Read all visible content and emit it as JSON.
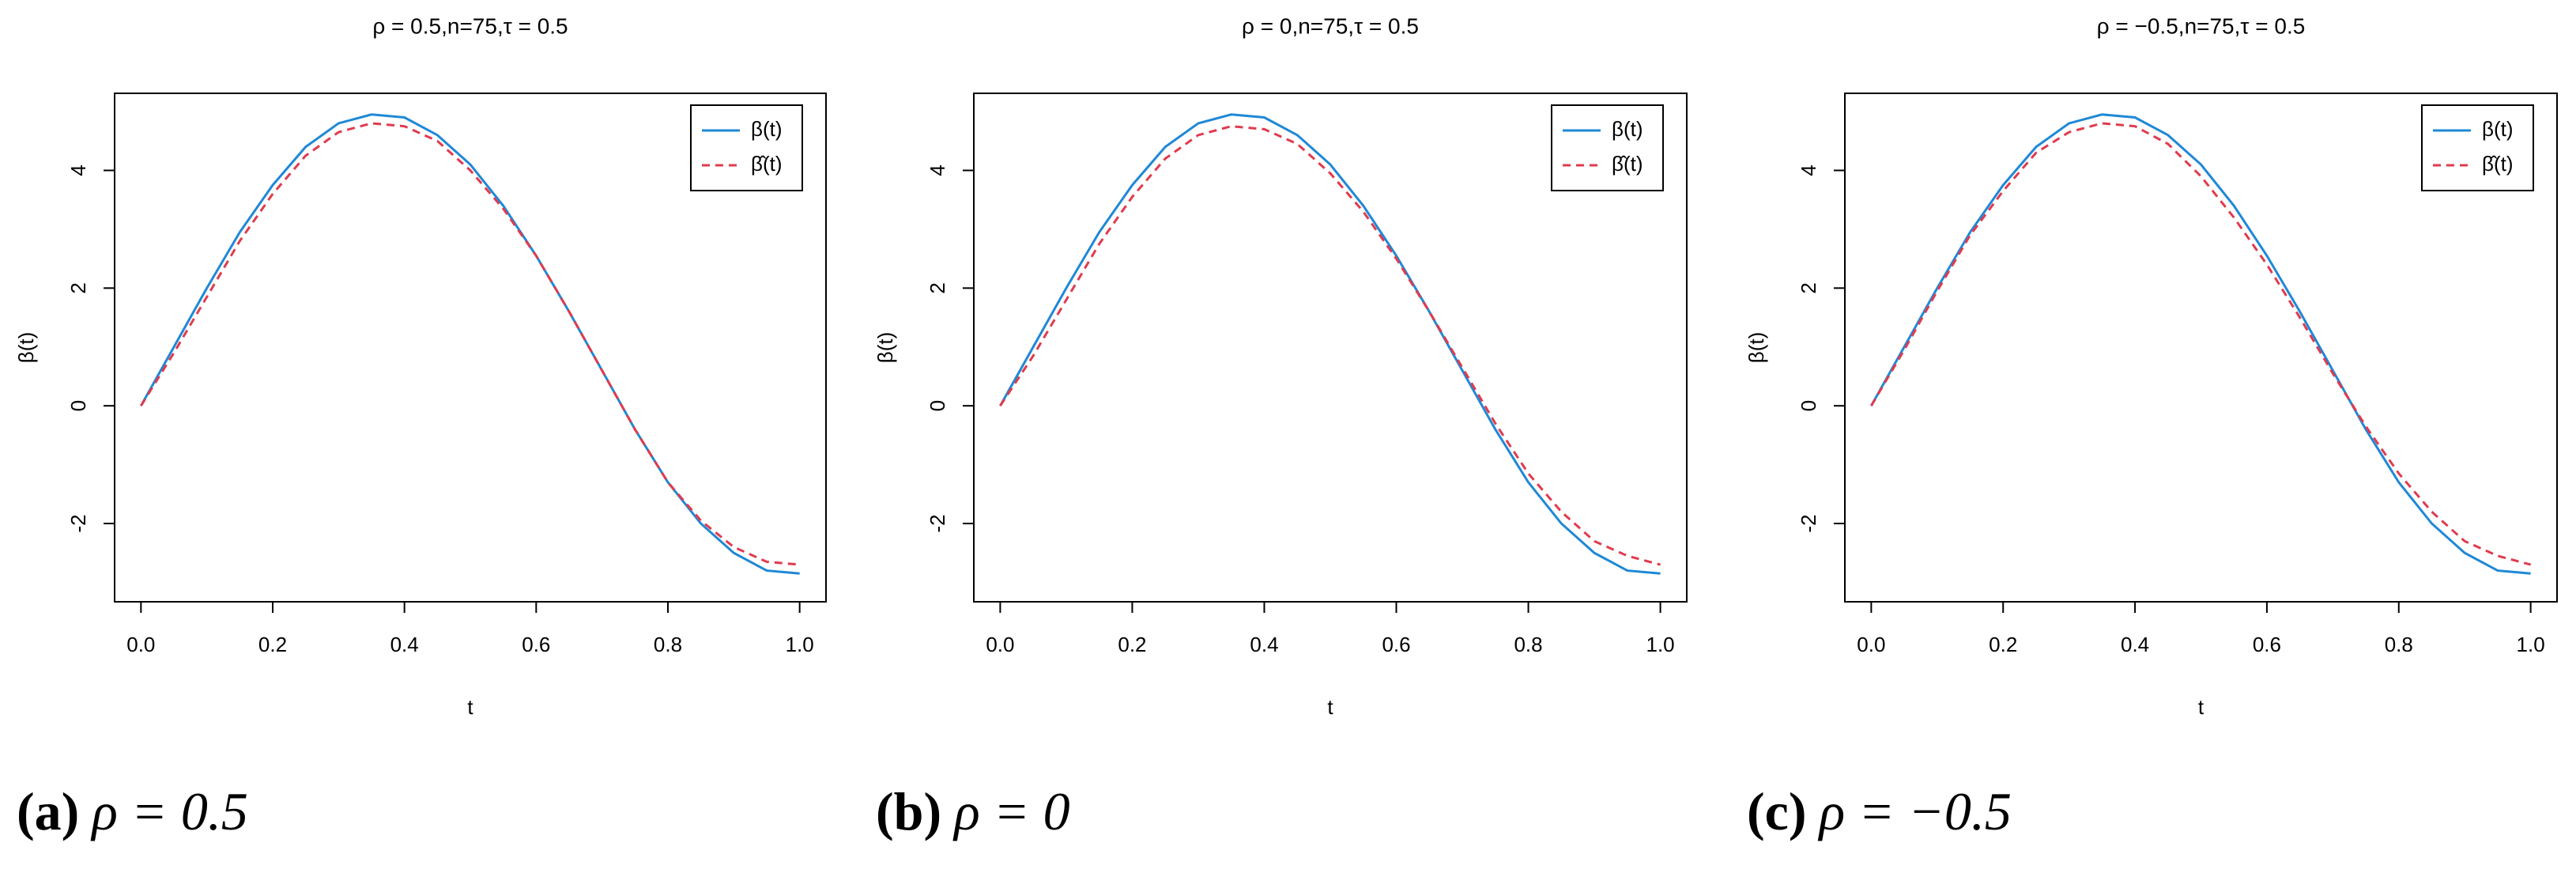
{
  "chart_data": [
    {
      "type": "line",
      "title": "ρ = 0.5,n=75,τ = 0.5",
      "xlabel": "t",
      "ylabel": "β(t)",
      "caption_label": "(a)",
      "caption": "ρ = 0.5",
      "x": [
        0,
        0.05,
        0.1,
        0.15,
        0.2,
        0.25,
        0.3,
        0.35,
        0.4,
        0.45,
        0.5,
        0.55,
        0.6,
        0.65,
        0.7,
        0.75,
        0.8,
        0.85,
        0.9,
        0.95,
        1.0
      ],
      "series": [
        {
          "name": "β(t)",
          "color": "#1f88d6",
          "dash": false,
          "values": [
            0,
            1.0,
            2.0,
            2.95,
            3.75,
            4.4,
            4.8,
            4.95,
            4.9,
            4.6,
            4.1,
            3.4,
            2.55,
            1.6,
            0.6,
            -0.4,
            -1.3,
            -2.0,
            -2.5,
            -2.8,
            -2.85
          ]
        },
        {
          "name": "β̂(t)",
          "color": "#e03b4e",
          "dash": true,
          "values": [
            0,
            0.9,
            1.85,
            2.8,
            3.6,
            4.25,
            4.65,
            4.8,
            4.75,
            4.5,
            4.0,
            3.35,
            2.55,
            1.6,
            0.6,
            -0.4,
            -1.3,
            -1.95,
            -2.4,
            -2.65,
            -2.7
          ]
        }
      ],
      "xlim": [
        -0.04,
        1.04
      ],
      "ylim": [
        -3.33,
        5.31
      ],
      "xticks": [
        {
          "value": 0,
          "label": "0.0"
        },
        0.2,
        0.4,
        0.6,
        0.8,
        {
          "value": 1,
          "label": "1.0"
        }
      ],
      "yticks": [
        -2,
        0,
        2,
        4
      ],
      "legend": "top-right"
    },
    {
      "type": "line",
      "title": "ρ = 0,n=75,τ = 0.5",
      "xlabel": "t",
      "ylabel": "β(t)",
      "caption_label": "(b)",
      "caption": "ρ = 0",
      "x": [
        0,
        0.05,
        0.1,
        0.15,
        0.2,
        0.25,
        0.3,
        0.35,
        0.4,
        0.45,
        0.5,
        0.55,
        0.6,
        0.65,
        0.7,
        0.75,
        0.8,
        0.85,
        0.9,
        0.95,
        1.0
      ],
      "series": [
        {
          "name": "β(t)",
          "color": "#1f88d6",
          "dash": false,
          "values": [
            0,
            1.0,
            2.0,
            2.95,
            3.75,
            4.4,
            4.8,
            4.95,
            4.9,
            4.6,
            4.1,
            3.4,
            2.55,
            1.6,
            0.6,
            -0.4,
            -1.3,
            -2.0,
            -2.5,
            -2.8,
            -2.85
          ]
        },
        {
          "name": "β̂(t)",
          "color": "#e03b4e",
          "dash": true,
          "values": [
            0,
            0.85,
            1.8,
            2.75,
            3.55,
            4.2,
            4.6,
            4.75,
            4.7,
            4.45,
            3.95,
            3.3,
            2.5,
            1.6,
            0.65,
            -0.3,
            -1.15,
            -1.8,
            -2.3,
            -2.55,
            -2.7
          ]
        }
      ],
      "xlim": [
        -0.04,
        1.04
      ],
      "ylim": [
        -3.33,
        5.31
      ],
      "xticks": [
        {
          "value": 0,
          "label": "0.0"
        },
        0.2,
        0.4,
        0.6,
        0.8,
        {
          "value": 1,
          "label": "1.0"
        }
      ],
      "yticks": [
        -2,
        0,
        2,
        4
      ],
      "legend": "top-right"
    },
    {
      "type": "line",
      "title": "ρ = −0.5,n=75,τ = 0.5",
      "xlabel": "t",
      "ylabel": "β(t)",
      "caption_label": "(c)",
      "caption": "ρ = −0.5",
      "x": [
        0,
        0.05,
        0.1,
        0.15,
        0.2,
        0.25,
        0.3,
        0.35,
        0.4,
        0.45,
        0.5,
        0.55,
        0.6,
        0.65,
        0.7,
        0.75,
        0.8,
        0.85,
        0.9,
        0.95,
        1.0
      ],
      "series": [
        {
          "name": "β(t)",
          "color": "#1f88d6",
          "dash": false,
          "values": [
            0,
            1.0,
            2.0,
            2.95,
            3.75,
            4.4,
            4.8,
            4.95,
            4.9,
            4.6,
            4.1,
            3.4,
            2.55,
            1.6,
            0.6,
            -0.4,
            -1.3,
            -2.0,
            -2.5,
            -2.8,
            -2.85
          ]
        },
        {
          "name": "β̂(t)",
          "color": "#e03b4e",
          "dash": true,
          "values": [
            0,
            0.95,
            1.95,
            2.9,
            3.65,
            4.3,
            4.65,
            4.8,
            4.75,
            4.45,
            3.9,
            3.2,
            2.4,
            1.5,
            0.55,
            -0.35,
            -1.15,
            -1.8,
            -2.3,
            -2.55,
            -2.7
          ]
        }
      ],
      "xlim": [
        -0.04,
        1.04
      ],
      "ylim": [
        -3.33,
        5.31
      ],
      "xticks": [
        {
          "value": 0,
          "label": "0.0"
        },
        0.2,
        0.4,
        0.6,
        0.8,
        {
          "value": 1,
          "label": "1.0"
        }
      ],
      "yticks": [
        -2,
        0,
        2,
        4
      ],
      "legend": "top-right"
    }
  ]
}
